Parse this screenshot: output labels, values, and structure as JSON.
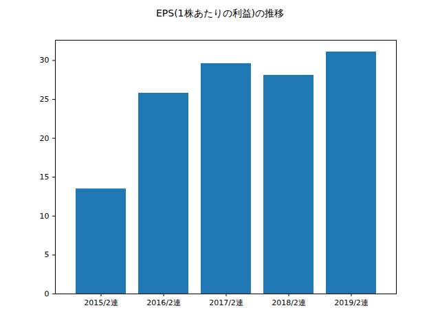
{
  "chart_data": {
    "type": "bar",
    "title": "EPS(1株あたりの利益)の推移",
    "categories": [
      "2015/2連",
      "2016/2連",
      "2017/2連",
      "2018/2連",
      "2019/2連"
    ],
    "values": [
      13.5,
      25.8,
      29.6,
      28.1,
      31.1
    ],
    "color": "#1f77b4",
    "ylim": [
      0,
      32.6
    ],
    "yticks": [
      0,
      5,
      10,
      15,
      20,
      25,
      30
    ],
    "grid": false
  }
}
